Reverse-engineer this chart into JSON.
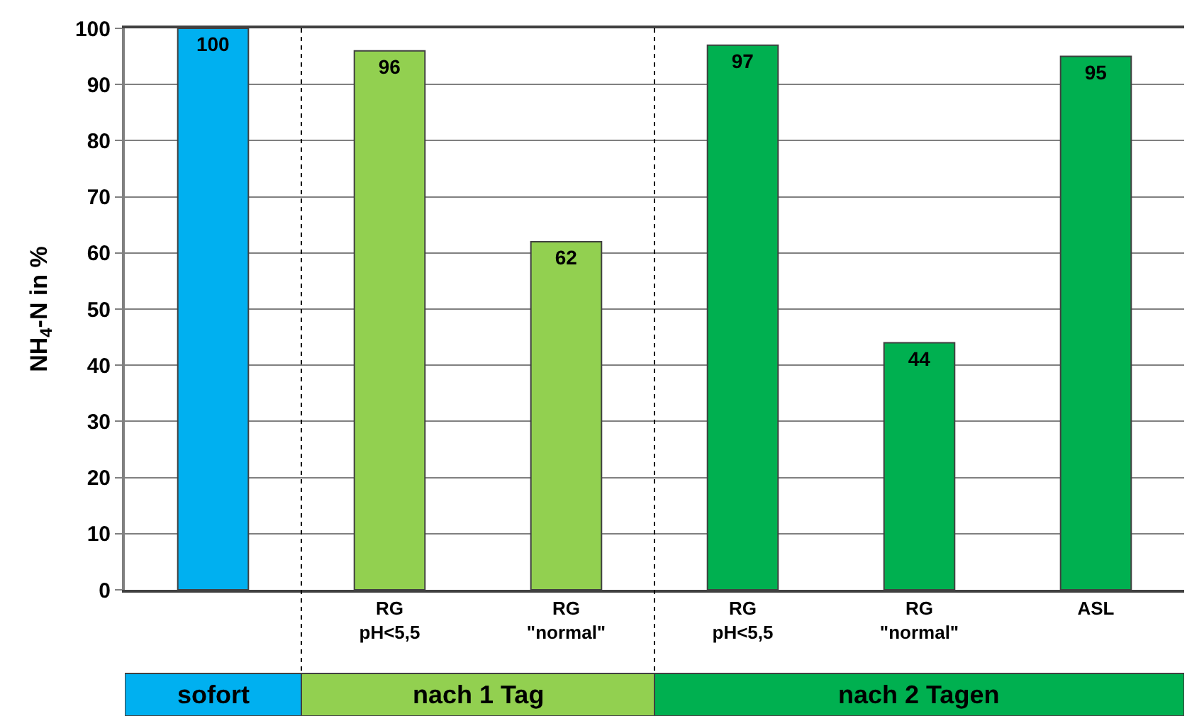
{
  "chart_data": {
    "type": "bar",
    "ylabel": "NH$_{4}$-N in %",
    "categories": [
      null,
      "RG\npH<5,5",
      "RG\n\"normal\"",
      "RG\npH<5,5",
      "RG\n\"normal\"",
      "ASL"
    ],
    "values": [
      100,
      96,
      62,
      97,
      44,
      95
    ],
    "colors": [
      "#00b0f0",
      "#92d050",
      "#92d050",
      "#00b050",
      "#00b050",
      "#00b050"
    ],
    "data_labels": true,
    "ylim": [
      0,
      100
    ],
    "yticks": [
      0,
      10,
      20,
      30,
      40,
      50,
      60,
      70,
      80,
      90,
      100
    ],
    "grid": "y",
    "annotations": [
      "sofort",
      "nach 1 Tag",
      "nach 2 Tagen"
    ]
  }
}
